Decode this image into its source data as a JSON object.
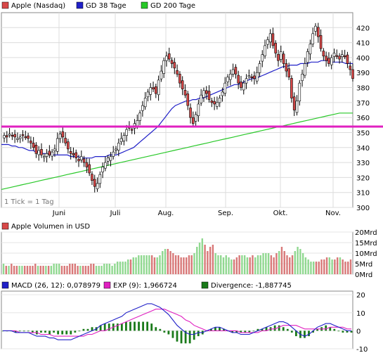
{
  "chart_data": [
    {
      "type": "candlestick",
      "legend": [
        {
          "label": "Apple (Nasdaq)",
          "color": "#d84848"
        },
        {
          "label": "GD 38 Tage",
          "color": "#2020c8"
        },
        {
          "label": "GD 200 Tage",
          "color": "#28c828"
        }
      ],
      "note": "1 Tick = 1 Tag",
      "x_labels": [
        "Juni",
        "Juli",
        "Aug.",
        "Sep.",
        "Okt.",
        "Nov."
      ],
      "y_ticks": [
        300,
        310,
        320,
        330,
        340,
        350,
        360,
        370,
        380,
        390,
        400,
        410,
        420
      ],
      "ylim": [
        300,
        430
      ],
      "horizontal_line": {
        "value": 354,
        "color": "#e020c0"
      },
      "closes": [
        348,
        347,
        349,
        348,
        347,
        346,
        347,
        348,
        347,
        346,
        343,
        340,
        336,
        338,
        335,
        334,
        336,
        335,
        337,
        339,
        346,
        349,
        347,
        343,
        339,
        336,
        335,
        333,
        331,
        334,
        330,
        327,
        323,
        318,
        314,
        316,
        322,
        327,
        330,
        333,
        334,
        337,
        339,
        343,
        346,
        348,
        352,
        353,
        352,
        356,
        358,
        363,
        368,
        373,
        377,
        380,
        379,
        376,
        385,
        391,
        398,
        401,
        399,
        396,
        393,
        389,
        383,
        379,
        375,
        368,
        360,
        356,
        362,
        369,
        375,
        378,
        376,
        372,
        370,
        369,
        370,
        373,
        377,
        383,
        387,
        389,
        392,
        389,
        383,
        380,
        383,
        386,
        388,
        387,
        386,
        390,
        396,
        402,
        408,
        412,
        416,
        408,
        403,
        398,
        404,
        396,
        391,
        387,
        373,
        365,
        371,
        383,
        389,
        396,
        404,
        409,
        416,
        421,
        414,
        406,
        401,
        398,
        396,
        400,
        403,
        401,
        399,
        402,
        401,
        396,
        392,
        386
      ],
      "gd38": [
        342,
        342,
        342,
        341,
        341,
        340,
        340,
        339,
        338,
        338,
        337,
        337,
        336,
        336,
        336,
        335,
        335,
        335,
        335,
        335,
        334,
        334,
        334,
        333,
        333,
        333,
        333,
        334,
        334,
        334,
        334,
        335,
        335,
        335,
        336,
        337,
        338,
        339,
        340,
        342,
        344,
        346,
        348,
        350,
        352,
        354,
        357,
        360,
        363,
        366,
        368,
        369,
        370,
        371,
        371,
        372,
        372,
        373,
        373,
        374,
        375,
        376,
        377,
        378,
        379,
        380,
        381,
        382,
        382,
        383,
        384,
        385,
        386,
        386,
        387,
        388,
        389,
        390,
        391,
        392,
        393,
        394,
        394,
        395,
        395,
        395,
        396,
        396,
        396,
        397,
        397,
        397,
        398,
        398,
        398,
        397,
        397,
        397,
        397,
        396,
        396,
        396
      ],
      "gd200": [
        312,
        313,
        314,
        315,
        316,
        317,
        318,
        319,
        320,
        321,
        322,
        323,
        324,
        325,
        326,
        327,
        328,
        329,
        330,
        331,
        332,
        333,
        334,
        335,
        336,
        337,
        338,
        339,
        340,
        341,
        342,
        343,
        344,
        345,
        346,
        347,
        348,
        349,
        350,
        351,
        352,
        353,
        354,
        355,
        356,
        357,
        358,
        359,
        360,
        361,
        362,
        363,
        363,
        363
      ],
      "volumes_mrd": [
        5,
        4,
        4,
        5,
        4,
        4,
        4,
        4,
        4,
        4,
        4,
        4,
        5,
        4,
        4,
        4,
        4,
        4,
        4,
        5,
        5,
        5,
        4,
        4,
        4,
        5,
        5,
        5,
        4,
        4,
        4,
        4,
        4,
        5,
        5,
        4,
        4,
        4,
        5,
        5,
        5,
        4,
        5,
        6,
        6,
        6,
        6,
        7,
        7,
        8,
        8,
        9,
        9,
        9,
        9,
        9,
        9,
        8,
        8,
        9,
        11,
        12,
        12,
        11,
        10,
        9,
        9,
        8,
        8,
        8,
        9,
        9,
        10,
        13,
        15,
        17,
        14,
        11,
        13,
        14,
        10,
        9,
        9,
        8,
        9,
        8,
        7,
        7,
        8,
        9,
        9,
        9,
        8,
        8,
        9,
        8,
        9,
        9,
        10,
        10,
        10,
        9,
        8,
        10,
        11,
        13,
        11,
        9,
        8,
        9,
        11,
        13,
        12,
        10,
        8,
        7,
        6,
        6,
        6,
        6,
        7,
        7,
        8,
        8,
        7,
        7,
        8,
        8,
        7,
        6,
        6,
        7
      ],
      "volume_label": "Apple Volumen in USD",
      "volume_ticks": [
        "20Mrd",
        "15Mrd",
        "10Mrd",
        "5Mrd",
        "0Mrd"
      ],
      "macd_legend": [
        {
          "label": "MACD (26, 12): 0,078979",
          "color": "#2020c8"
        },
        {
          "label": "EXP (9): 1,966724",
          "color": "#e020c0"
        },
        {
          "label": "Divergence: -1,887745",
          "color": "#1a7a1a"
        }
      ],
      "macd_ticks": [
        "20",
        "10",
        "0",
        "-10"
      ],
      "macd": [
        0,
        0,
        0,
        -1,
        -1,
        -1,
        -1,
        -2,
        -3,
        -3,
        -3,
        -4,
        -4,
        -5,
        -5,
        -5,
        -5,
        -4,
        -3,
        -2,
        -1,
        0,
        1,
        3,
        4,
        5,
        6,
        7,
        8,
        10,
        11,
        12,
        13,
        14,
        15,
        15,
        14,
        13,
        11,
        9,
        6,
        3,
        1,
        -1,
        -2,
        -2,
        -1,
        -1,
        0,
        1,
        2,
        2,
        1,
        0,
        -1,
        -1,
        -2,
        -2,
        -2,
        -1,
        0,
        1,
        2,
        3,
        4,
        5,
        5,
        4,
        2,
        0,
        -2,
        -3,
        -2,
        0,
        2,
        3,
        4,
        4,
        3,
        2,
        1,
        0,
        0
      ],
      "exp": [
        0,
        0,
        0,
        0,
        -1,
        -1,
        -1,
        -1,
        -1,
        -2,
        -2,
        -2,
        -3,
        -3,
        -3,
        -3,
        -3,
        -3,
        -3,
        -3,
        -2,
        -2,
        -1,
        0,
        0,
        1,
        2,
        3,
        4,
        5,
        6,
        7,
        8,
        9,
        10,
        11,
        12,
        12,
        12,
        11,
        10,
        9,
        8,
        6,
        5,
        3,
        2,
        1,
        0,
        0,
        0,
        0,
        0,
        0,
        0,
        0,
        -1,
        -1,
        -1,
        -1,
        -1,
        0,
        0,
        1,
        1,
        2,
        3,
        3,
        3,
        3,
        2,
        1,
        1,
        1,
        1,
        1,
        1,
        2,
        2,
        2,
        2,
        1,
        1
      ],
      "macd_ylim": [
        -10,
        22
      ]
    }
  ]
}
